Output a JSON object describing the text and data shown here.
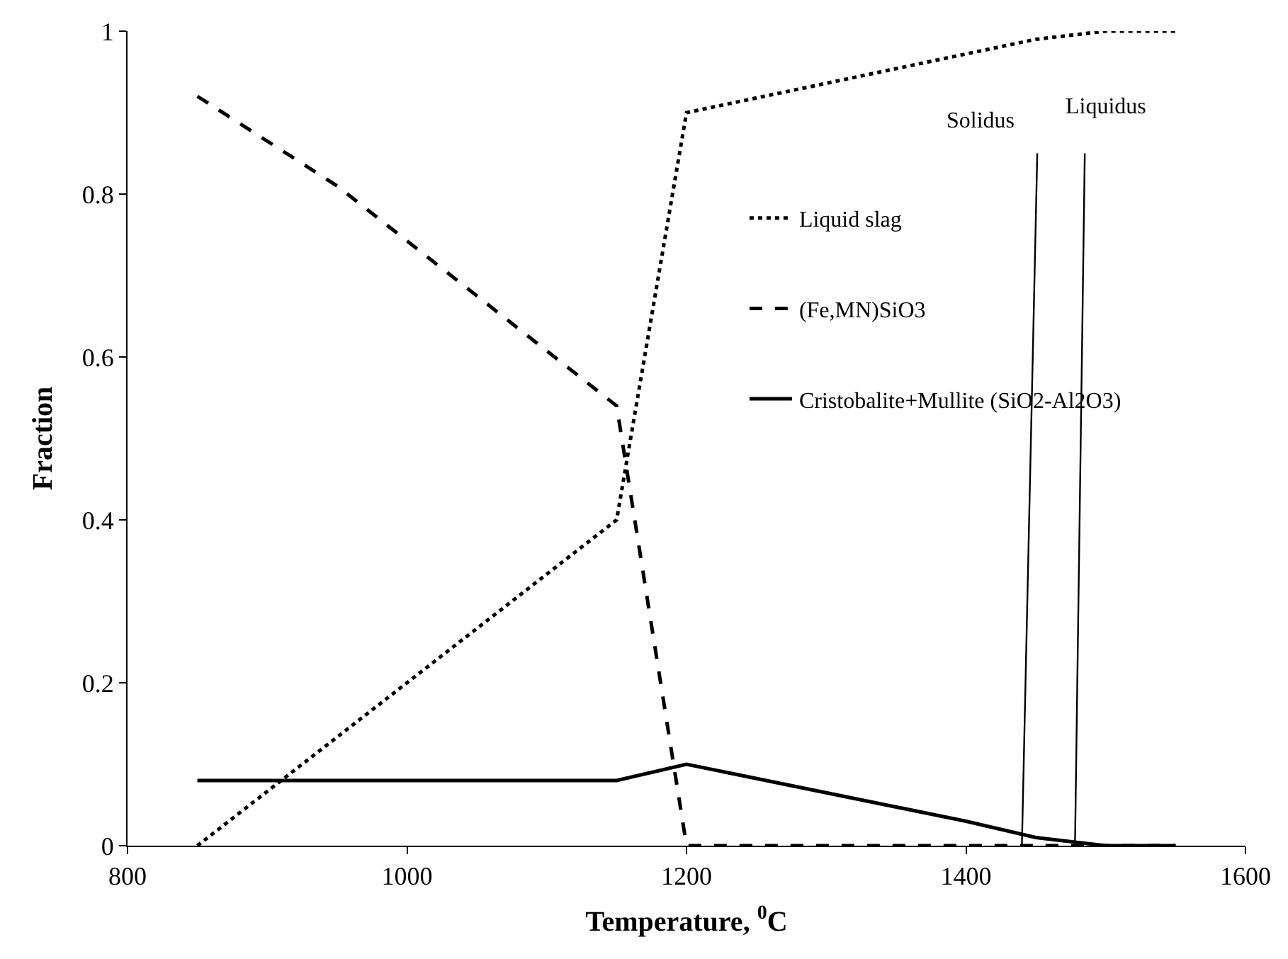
{
  "chart_data": {
    "type": "line",
    "xlabel": "Temperature, $^{0}$C",
    "ylabel": "Fraction",
    "xlim": [
      800,
      1600
    ],
    "xticks": [
      800,
      1000,
      1200,
      1400,
      1600
    ],
    "ylim": [
      0,
      1
    ],
    "yticks": [
      0,
      0.2,
      0.4,
      0.6,
      0.8,
      1
    ],
    "legend": "right",
    "series": [
      {
        "name": "Liquid slag",
        "color": "#000000",
        "line_style": "dotted",
        "x": [
          850,
          1150,
          1200,
          1450,
          1500,
          1550
        ],
        "values": [
          0,
          0.4,
          0.9,
          0.99,
          1.0,
          1.0
        ]
      },
      {
        "name": "(Fe,MN)SiO3",
        "color": "#000000",
        "line_style": "dashed",
        "x": [
          850,
          950,
          1150,
          1200,
          1550
        ],
        "values": [
          0.92,
          0.81,
          0.54,
          0,
          0
        ]
      },
      {
        "name": "Cristobalite+Mullite (SiO2-Al2O3)",
        "color": "#000000",
        "line_style": "solid",
        "x": [
          850,
          1150,
          1200,
          1400,
          1450,
          1500,
          1550
        ],
        "values": [
          0.08,
          0.08,
          0.1,
          0.03,
          0.01,
          0,
          0
        ]
      },
      {
        "color": "#000000",
        "line_style": "solid",
        "x": [
          1440,
          1451
        ],
        "values": [
          0,
          0.85
        ]
      },
      {
        "color": "#000000",
        "line_style": "solid",
        "x": [
          1478,
          1485
        ],
        "values": [
          0,
          0.85
        ]
      }
    ],
    "annotations": [
      "Solidus",
      "Liquidus"
    ]
  }
}
